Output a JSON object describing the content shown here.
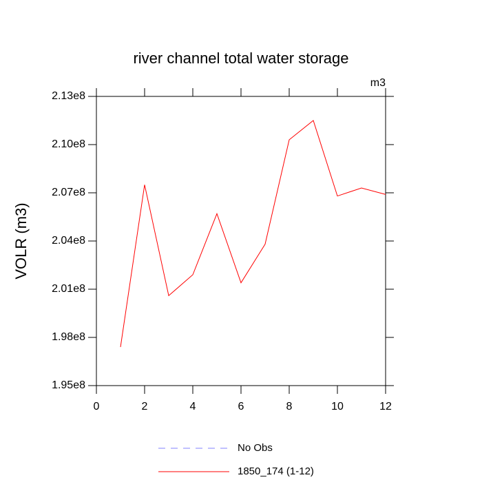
{
  "chart_data": {
    "type": "line",
    "title": "river channel total water storage",
    "units": "m3",
    "y_label": "VOLR  (m3)",
    "x": [
      1,
      2,
      3,
      4,
      5,
      6,
      7,
      8,
      9,
      10,
      11,
      12
    ],
    "series": [
      {
        "name": "No Obs",
        "color": "#8080ff",
        "dash": true,
        "values": [
          null,
          null,
          null,
          null,
          null,
          null,
          null,
          null,
          null,
          null,
          null,
          null
        ]
      },
      {
        "name": "1850_174 (1-12)",
        "color": "#ff0000",
        "dash": false,
        "values": [
          197400000,
          207500000,
          200600000,
          201900000,
          205700000,
          201400000,
          203800000,
          210300000,
          211500000,
          206800000,
          207300000,
          206900000
        ]
      }
    ],
    "xlim": [
      0,
      12
    ],
    "xticks": [
      0,
      2,
      4,
      6,
      8,
      10,
      12
    ],
    "ylim": [
      195000000,
      213000000
    ],
    "yticks": [
      {
        "value": 195000000,
        "label": "1.95e8"
      },
      {
        "value": 198000000,
        "label": "1.98e8"
      },
      {
        "value": 201000000,
        "label": "2.01e8"
      },
      {
        "value": 204000000,
        "label": "2.04e8"
      },
      {
        "value": 207000000,
        "label": "2.07e8"
      },
      {
        "value": 210000000,
        "label": "2.10e8"
      },
      {
        "value": 213000000,
        "label": "2.13e8"
      }
    ],
    "grid": false
  }
}
